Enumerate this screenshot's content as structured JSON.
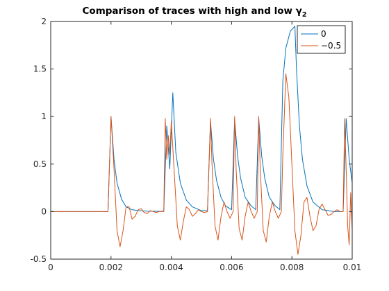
{
  "chart_data": {
    "type": "line",
    "title": "Comparison of traces with high and low γ",
    "title_subscript": "2",
    "xlabel": "",
    "ylabel": "",
    "xlim": [
      0,
      0.01
    ],
    "ylim": [
      -0.5,
      2
    ],
    "x_ticks": [
      "0",
      "0.002",
      "0.004",
      "0.006",
      "0.008",
      "0.01"
    ],
    "y_ticks": [
      "-0.5",
      "0",
      "0.5",
      "1",
      "1.5",
      "2"
    ],
    "x_tick_values": [
      0,
      0.002,
      0.004,
      0.006,
      0.008,
      0.01
    ],
    "y_tick_values": [
      -0.5,
      0,
      0.5,
      1,
      1.5,
      2
    ],
    "grid": false,
    "legend_position": "top-right",
    "series": [
      {
        "name": "0",
        "color": "#0072BD",
        "x": [
          0,
          0.0019,
          0.002,
          0.0021,
          0.0022,
          0.00235,
          0.0025,
          0.0027,
          0.0029,
          0.0032,
          0.0036,
          0.00375,
          0.00385,
          0.00395,
          0.00405,
          0.00415,
          0.0043,
          0.0045,
          0.0047,
          0.005,
          0.0052,
          0.0053,
          0.0054,
          0.0055,
          0.00565,
          0.0058,
          0.006,
          0.0061,
          0.0062,
          0.0063,
          0.00645,
          0.00665,
          0.0068,
          0.0069,
          0.007,
          0.0071,
          0.00725,
          0.00745,
          0.0076,
          0.0077,
          0.0078,
          0.00795,
          0.0081,
          0.00815,
          0.00825,
          0.00835,
          0.0085,
          0.0087,
          0.009,
          0.0094,
          0.0097,
          0.0098,
          0.0099,
          0.01
        ],
        "y": [
          0,
          0,
          1.0,
          0.55,
          0.3,
          0.13,
          0.05,
          0.02,
          0.01,
          0.005,
          0.003,
          0.003,
          0.9,
          0.45,
          1.25,
          0.62,
          0.3,
          0.12,
          0.05,
          0.01,
          0.01,
          0.95,
          0.55,
          0.33,
          0.15,
          0.06,
          0.02,
          0.97,
          0.58,
          0.35,
          0.15,
          0.06,
          0.02,
          0.98,
          0.58,
          0.35,
          0.15,
          0.06,
          0.02,
          1.38,
          1.72,
          1.9,
          1.95,
          1.52,
          0.9,
          0.55,
          0.27,
          0.1,
          0.02,
          0.0,
          0.0,
          0.98,
          0.55,
          0.3
        ]
      },
      {
        "name": "−0.5",
        "color": "#D95319",
        "x": [
          0,
          0.0019,
          0.002,
          0.0021,
          0.0022,
          0.0023,
          0.0024,
          0.0025,
          0.0026,
          0.0027,
          0.0028,
          0.0029,
          0.003,
          0.0031,
          0.0032,
          0.0033,
          0.0034,
          0.0035,
          0.0036,
          0.0037,
          0.00375,
          0.0038,
          0.00385,
          0.0039,
          0.00395,
          0.004,
          0.0041,
          0.0042,
          0.0043,
          0.0044,
          0.0045,
          0.0046,
          0.0047,
          0.0048,
          0.0049,
          0.005,
          0.0051,
          0.0052,
          0.0053,
          0.00535,
          0.00545,
          0.00555,
          0.00565,
          0.00575,
          0.00585,
          0.00595,
          0.00605,
          0.0061,
          0.00615,
          0.00625,
          0.00635,
          0.00645,
          0.00655,
          0.00665,
          0.00675,
          0.00685,
          0.0069,
          0.00695,
          0.00705,
          0.00715,
          0.00725,
          0.00735,
          0.00745,
          0.00755,
          0.00765,
          0.0077,
          0.0078,
          0.0079,
          0.008,
          0.0081,
          0.0082,
          0.0083,
          0.0084,
          0.0085,
          0.0086,
          0.0087,
          0.0088,
          0.0089,
          0.009,
          0.0091,
          0.0092,
          0.0093,
          0.0094,
          0.0095,
          0.0096,
          0.0097,
          0.00975,
          0.0098,
          0.00985,
          0.0099,
          0.00995,
          0.01
        ],
        "y": [
          0,
          0,
          1.0,
          0.45,
          -0.2,
          -0.37,
          -0.2,
          0.05,
          0.05,
          -0.08,
          -0.05,
          0.02,
          0.03,
          -0.01,
          -0.02,
          0.01,
          0.0,
          -0.01,
          0.0,
          0.0,
          0.0,
          0.98,
          0.55,
          0.8,
          0.6,
          0.95,
          0.4,
          -0.15,
          -0.3,
          -0.1,
          0.05,
          0.02,
          -0.05,
          -0.02,
          0.02,
          0.0,
          -0.01,
          0.0,
          0.98,
          0.5,
          -0.15,
          -0.3,
          -0.05,
          0.1,
          0.0,
          -0.07,
          0.0,
          1.0,
          0.45,
          -0.18,
          -0.3,
          -0.05,
          0.1,
          0.0,
          -0.07,
          0.0,
          1.0,
          0.45,
          -0.2,
          -0.32,
          -0.05,
          0.1,
          0.0,
          -0.07,
          0.0,
          0.6,
          1.45,
          1.2,
          0.5,
          -0.2,
          -0.45,
          -0.25,
          0.1,
          0.15,
          -0.05,
          -0.2,
          -0.15,
          0.02,
          0.08,
          0.02,
          -0.04,
          -0.03,
          0.0,
          0.02,
          0.0,
          0.0,
          0.98,
          0.45,
          -0.15,
          -0.35,
          0.2,
          -0.2
        ]
      }
    ]
  }
}
